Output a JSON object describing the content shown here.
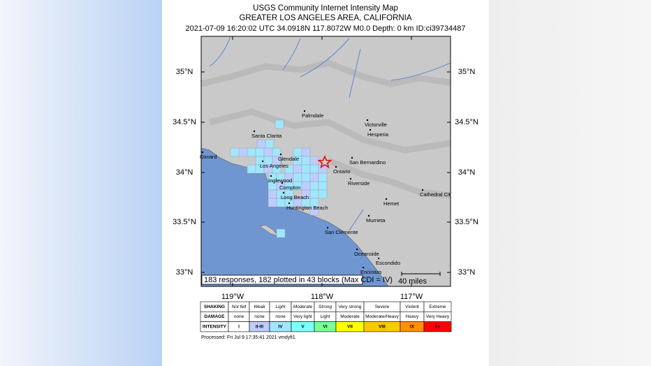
{
  "header": {
    "title": "USGS Community Internet Intensity Map",
    "region": "GREATER LOS ANGELES AREA, CALIFORNIA",
    "event": "2021-07-09 16:20:02 UTC 34.0918N 117.8072W M0.0 Depth: 0 km ID:ci39734487"
  },
  "map": {
    "lat_labels": [
      "35°N",
      "34.5°N",
      "34°N",
      "33.5°N",
      "33°N"
    ],
    "lon_labels": [
      "119°W",
      "118°W",
      "117°W"
    ],
    "places": [
      "Palmdale",
      "Victorville",
      "Hesperia",
      "Santa Clarita",
      "Oxnard",
      "Glendale",
      "Los Angeles",
      "San Bernardino",
      "Ontario",
      "Inglewood",
      "Riverside",
      "Compton",
      "Cathedral Cit",
      "Long Beach",
      "Hemet",
      "Huntington Beach",
      "Murrieta",
      "San Clemente",
      "Oceanside",
      "Escondido",
      "Encinitas"
    ],
    "summary": "183 responses, 182 plotted in 43 blocks (Max CDI = IV)",
    "scale": "40 miles"
  },
  "legend": {
    "rows": [
      [
        "SHAKING",
        "Not felt",
        "Weak",
        "Light",
        "Moderate",
        "Strong",
        "Very strong",
        "Severe",
        "Violent",
        "Extreme"
      ],
      [
        "DAMAGE",
        "none",
        "none",
        "none",
        "Very light",
        "Light",
        "Moderate",
        "Moderate/Heavy",
        "Heavy",
        "Very Heavy"
      ],
      [
        "INTENSITY",
        "I",
        "II-III",
        "IV",
        "V",
        "VI",
        "VII",
        "VIII",
        "IX",
        "X+"
      ]
    ]
  },
  "footer": "Processed: Fri Jul  9 17:35:41 2021 vmdyfi1"
}
